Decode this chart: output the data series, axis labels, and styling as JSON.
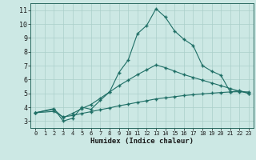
{
  "xlabel": "Humidex (Indice chaleur)",
  "xlim": [
    -0.5,
    23.5
  ],
  "ylim": [
    2.5,
    11.5
  ],
  "xticks": [
    0,
    1,
    2,
    3,
    4,
    5,
    6,
    7,
    8,
    9,
    10,
    11,
    12,
    13,
    14,
    15,
    16,
    17,
    18,
    19,
    20,
    21,
    22,
    23
  ],
  "yticks": [
    3,
    4,
    5,
    6,
    7,
    8,
    9,
    10,
    11
  ],
  "background_color": "#cce8e4",
  "line_color": "#1e6e65",
  "grid_color": "#aacfca",
  "line1_x": [
    0,
    2,
    3,
    4,
    5,
    6,
    7,
    8,
    9,
    10,
    11,
    12,
    13,
    14,
    15,
    16,
    17,
    18,
    19,
    20,
    21,
    22,
    23
  ],
  "line1_y": [
    3.6,
    3.9,
    3.0,
    3.2,
    4.0,
    3.85,
    4.5,
    5.1,
    6.5,
    7.4,
    9.3,
    9.9,
    11.1,
    10.5,
    9.5,
    8.9,
    8.45,
    7.0,
    6.6,
    6.3,
    5.1,
    5.2,
    5.0
  ],
  "line2_x": [
    0,
    2,
    3,
    4,
    5,
    6,
    7,
    8,
    9,
    10,
    11,
    12,
    13,
    14,
    15,
    16,
    17,
    18,
    19,
    20,
    21,
    22,
    23
  ],
  "line2_y": [
    3.6,
    3.85,
    3.25,
    3.55,
    3.9,
    4.2,
    4.65,
    5.1,
    5.55,
    5.95,
    6.35,
    6.7,
    7.05,
    6.85,
    6.6,
    6.35,
    6.15,
    5.95,
    5.75,
    5.55,
    5.35,
    5.15,
    5.0
  ],
  "line3_x": [
    0,
    2,
    3,
    4,
    5,
    6,
    7,
    8,
    9,
    10,
    11,
    12,
    13,
    14,
    15,
    16,
    17,
    18,
    19,
    20,
    21,
    22,
    23
  ],
  "line3_y": [
    3.6,
    3.7,
    3.3,
    3.4,
    3.55,
    3.68,
    3.82,
    3.95,
    4.1,
    4.22,
    4.35,
    4.47,
    4.6,
    4.68,
    4.76,
    4.84,
    4.9,
    4.96,
    5.01,
    5.06,
    5.1,
    5.12,
    5.1
  ]
}
